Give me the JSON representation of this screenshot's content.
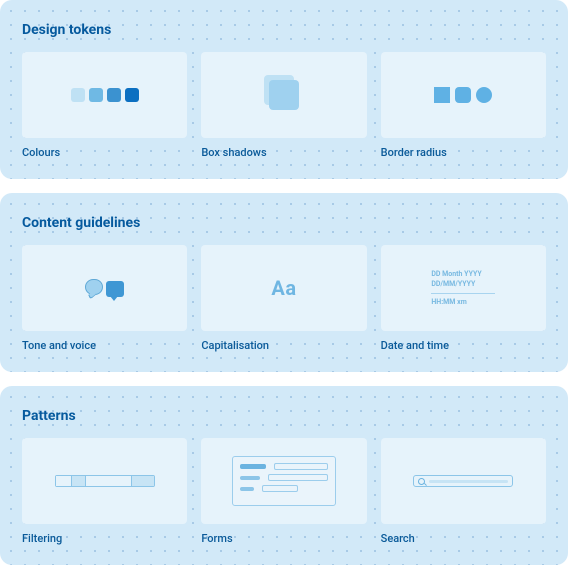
{
  "layout": {
    "panel_bg": "#d2e9f8",
    "card_bg": "#e6f3fb",
    "dot_color": "rgba(0,80,160,0.22)",
    "heading_color": "#065a9e",
    "caption_color": "#0a5a99"
  },
  "sections": [
    {
      "title": "Design tokens",
      "cards": [
        {
          "id": "colours",
          "label": "Colours",
          "swatches": [
            "#bfe1f4",
            "#6fb9e4",
            "#3b92d0",
            "#0b6fc1"
          ]
        },
        {
          "id": "box-shadows",
          "label": "Box shadows",
          "back_color": "#bfe1f4",
          "front_color": "#9fd1ef"
        },
        {
          "id": "border-radius",
          "label": "Border radius",
          "shape_color": "#5fb1e4"
        }
      ]
    },
    {
      "title": "Content guidelines",
      "cards": [
        {
          "id": "tone-voice",
          "label": "Tone and voice"
        },
        {
          "id": "capitalisation",
          "label": "Capitalisation",
          "glyph": "Aa"
        },
        {
          "id": "date-time",
          "label": "Date and time",
          "lines_top": [
            "DD Month YYYY",
            "DD/MM/YYYY"
          ],
          "line_bottom": "HH:MM xm"
        }
      ]
    },
    {
      "title": "Patterns",
      "cards": [
        {
          "id": "filtering",
          "label": "Filtering"
        },
        {
          "id": "forms",
          "label": "Forms"
        },
        {
          "id": "search",
          "label": "Search"
        }
      ]
    }
  ]
}
